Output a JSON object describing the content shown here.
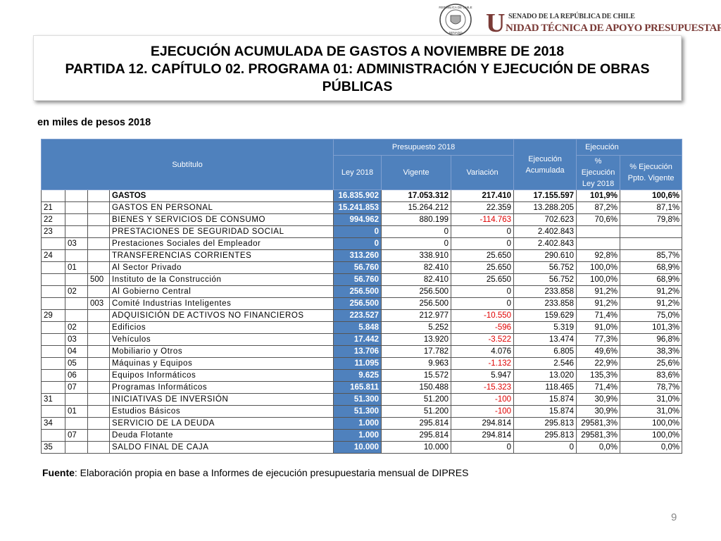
{
  "header": {
    "seal_top": "REPÚBLICA DE CHILE",
    "seal_bottom": "SENADO",
    "org_top": "SENADO DE LA REPÚBLICA DE CHILE",
    "org_initial": "U",
    "org_name": "NIDAD TÉCNICA DE APOYO PRESUPUESTARIO"
  },
  "title": {
    "line1": "EJECUCIÓN ACUMULADA DE GASTOS A NOVIEMBRE DE 2018",
    "line2": "PARTIDA 12. CAPÍTULO 02. PROGRAMA 01: ADMINISTRACIÓN Y EJECUCIÓN DE OBRAS PÚBLICAS"
  },
  "subtitle": "en miles de pesos 2018",
  "table": {
    "headers": {
      "subtitulo": "Subtítulo",
      "presupuesto": "Presupuesto 2018",
      "ley": "Ley 2018",
      "vigente": "Vigente",
      "variacion": "Variación",
      "ejecucion": "Ejecución Acumulada",
      "ejecucion_top": "Ejecución",
      "pct_ley": "% Ejecución Ley 2018",
      "pct_vigente": "% Ejecución Ppto. Vigente"
    },
    "rows": [
      {
        "name": "GASTOS",
        "ley": "16.835.902",
        "vigente": "17.053.312",
        "variacion": "217.410",
        "ejecucion": "17.155.597",
        "pct_ley": "101,9%",
        "pct_vigente": "100,6%"
      },
      {
        "sub": "21",
        "name": "GASTOS EN PERSONAL",
        "ley": "15.241.853",
        "vigente": "15.264.212",
        "variacion": "22.359",
        "ejecucion": "13.288.205",
        "pct_ley": "87,2%",
        "pct_vigente": "87,1%"
      },
      {
        "sub": "22",
        "name": "BIENES Y SERVICIOS DE CONSUMO",
        "ley": "994.962",
        "vigente": "880.199",
        "variacion": "-114.763",
        "ejecucion": "702.623",
        "pct_ley": "70,6%",
        "pct_vigente": "79,8%"
      },
      {
        "sub": "23",
        "name": "PRESTACIONES DE SEGURIDAD SOCIAL",
        "ley": "0",
        "vigente": "0",
        "variacion": "0",
        "ejecucion": "2.402.843"
      },
      {
        "item": "03",
        "name": "Prestaciones Sociales del Empleador",
        "ley": "0",
        "vigente": "0",
        "variacion": "0",
        "ejecucion": "2.402.843"
      },
      {
        "sub": "24",
        "name": "TRANSFERENCIAS CORRIENTES",
        "ley": "313.260",
        "vigente": "338.910",
        "variacion": "25.650",
        "ejecucion": "290.610",
        "pct_ley": "92,8%",
        "pct_vigente": "85,7%"
      },
      {
        "item": "01",
        "name": "Al Sector Privado",
        "ley": "56.760",
        "vigente": "82.410",
        "variacion": "25.650",
        "ejecucion": "56.752",
        "pct_ley": "100,0%",
        "pct_vigente": "68,9%"
      },
      {
        "asig": "500",
        "name": "Instituto de la Construcción",
        "ley": "56.760",
        "vigente": "82.410",
        "variacion": "25.650",
        "ejecucion": "56.752",
        "pct_ley": "100,0%",
        "pct_vigente": "68,9%"
      },
      {
        "item": "02",
        "name": "Al Gobierno Central",
        "ley": "256.500",
        "vigente": "256.500",
        "variacion": "0",
        "ejecucion": "233.858",
        "pct_ley": "91,2%",
        "pct_vigente": "91,2%"
      },
      {
        "asig": "003",
        "name": "Comité Industrias Inteligentes",
        "ley": "256.500",
        "vigente": "256.500",
        "variacion": "0",
        "ejecucion": "233.858",
        "pct_ley": "91,2%",
        "pct_vigente": "91,2%"
      },
      {
        "sub": "29",
        "name": "ADQUISICIÓN DE ACTIVOS NO FINANCIEROS",
        "ley": "223.527",
        "vigente": "212.977",
        "variacion": "-10.550",
        "ejecucion": "159.629",
        "pct_ley": "71,4%",
        "pct_vigente": "75,0%"
      },
      {
        "item": "02",
        "name": "Edificios",
        "ley": "5.848",
        "vigente": "5.252",
        "variacion": "-596",
        "ejecucion": "5.319",
        "pct_ley": "91,0%",
        "pct_vigente": "101,3%"
      },
      {
        "item": "03",
        "name": "Vehículos",
        "ley": "17.442",
        "vigente": "13.920",
        "variacion": "-3.522",
        "ejecucion": "13.474",
        "pct_ley": "77,3%",
        "pct_vigente": "96,8%"
      },
      {
        "item": "04",
        "name": "Mobiliario y Otros",
        "ley": "13.706",
        "vigente": "17.782",
        "variacion": "4.076",
        "ejecucion": "6.805",
        "pct_ley": "49,6%",
        "pct_vigente": "38,3%"
      },
      {
        "item": "05",
        "name": "Máquinas y Equipos",
        "ley": "11.095",
        "vigente": "9.963",
        "variacion": "-1.132",
        "ejecucion": "2.546",
        "pct_ley": "22,9%",
        "pct_vigente": "25,6%"
      },
      {
        "item": "06",
        "name": "Equipos Informáticos",
        "ley": "9.625",
        "vigente": "15.572",
        "variacion": "5.947",
        "ejecucion": "13.020",
        "pct_ley": "135,3%",
        "pct_vigente": "83,6%"
      },
      {
        "item": "07",
        "name": "Programas Informáticos",
        "ley": "165.811",
        "vigente": "150.488",
        "variacion": "-15.323",
        "ejecucion": "118.465",
        "pct_ley": "71,4%",
        "pct_vigente": "78,7%"
      },
      {
        "sub": "31",
        "name": "INICIATIVAS DE INVERSIÓN",
        "ley": "51.300",
        "vigente": "51.200",
        "variacion": "-100",
        "ejecucion": "15.874",
        "pct_ley": "30,9%",
        "pct_vigente": "31,0%"
      },
      {
        "item": "01",
        "name": "Estudios Básicos",
        "ley": "51.300",
        "vigente": "51.200",
        "variacion": "-100",
        "ejecucion": "15.874",
        "pct_ley": "30,9%",
        "pct_vigente": "31,0%"
      },
      {
        "sub": "34",
        "name": "SERVICIO DE LA DEUDA",
        "ley": "1.000",
        "vigente": "295.814",
        "variacion": "294.814",
        "ejecucion": "295.813",
        "pct_ley": "29581,3%",
        "pct_vigente": "100,0%"
      },
      {
        "item": "07",
        "name": "Deuda Flotante",
        "ley": "1.000",
        "vigente": "295.814",
        "variacion": "294.814",
        "ejecucion": "295.813",
        "pct_ley": "29581,3%",
        "pct_vigente": "100,0%"
      },
      {
        "sub": "35",
        "name": "SALDO FINAL DE CAJA",
        "ley": "10.000",
        "vigente": "10.000",
        "variacion": "0",
        "ejecucion": "0",
        "pct_ley": "0,0%",
        "pct_vigente": "0,0%"
      }
    ]
  },
  "footer": {
    "source_label": "Fuente",
    "source_text": ": Elaboración propia en base  a Informes de ejecución presupuestaria mensual de DIPRES",
    "page": "9"
  }
}
